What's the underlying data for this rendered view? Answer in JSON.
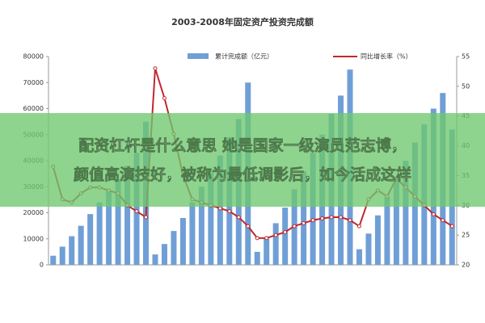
{
  "chart_data": {
    "type": "bar-line",
    "title": "2003-2008年固定资产投资完成额",
    "categories": [
      null,
      null,
      null,
      null,
      null,
      null,
      null,
      null,
      null,
      null,
      null,
      null,
      null,
      null,
      null,
      null,
      null,
      null,
      null,
      null,
      null,
      null,
      null,
      null,
      null,
      null,
      null,
      null,
      null,
      null,
      null,
      null,
      null,
      null,
      null,
      null,
      null,
      null,
      null,
      null,
      null,
      null,
      null,
      null
    ],
    "series": [
      {
        "name": "累计完成额（亿元）",
        "kind": "bar",
        "color": "#6f9fd6",
        "values": [
          3500,
          7000,
          11000,
          15000,
          19500,
          24000,
          28500,
          33000,
          38000,
          43000,
          55000,
          4000,
          8000,
          13000,
          18000,
          24000,
          30000,
          36000,
          42000,
          49000,
          56000,
          70000,
          5000,
          10000,
          16000,
          22000,
          29000,
          36000,
          43000,
          50000,
          58000,
          65000,
          75000,
          6000,
          12000,
          19000,
          26000,
          33000,
          40000,
          47000,
          54000,
          60000,
          66000,
          52000
        ]
      },
      {
        "name": "同比增长率（%）",
        "kind": "line",
        "axis": "y2",
        "color": "#c0282d",
        "values": [
          36.5,
          31,
          30.5,
          32,
          33,
          33,
          32.5,
          32,
          30,
          29,
          28,
          53,
          48,
          42,
          35,
          31,
          30.5,
          30,
          29.5,
          29,
          28,
          26.5,
          24.5,
          24.5,
          25,
          25.5,
          26.5,
          27,
          27.5,
          27.8,
          28,
          28,
          27.5,
          26.5,
          31,
          32.5,
          31.5,
          34.5,
          33,
          31.5,
          30,
          28.5,
          27.5,
          26.5
        ]
      }
    ],
    "ylim": [
      0,
      80000
    ],
    "yticks": [
      0,
      10000,
      20000,
      30000,
      40000,
      50000,
      60000,
      70000,
      80000
    ],
    "y2lim": [
      20,
      55
    ],
    "y2ticks": [
      20,
      25,
      30,
      35,
      40,
      45,
      50,
      55
    ]
  },
  "overlay": {
    "lines": [
      "配资杠杆是什么意思 她是国家一级演员范志博，",
      "颜值高演技好，被称为最低调影后，如今活成这样"
    ]
  }
}
